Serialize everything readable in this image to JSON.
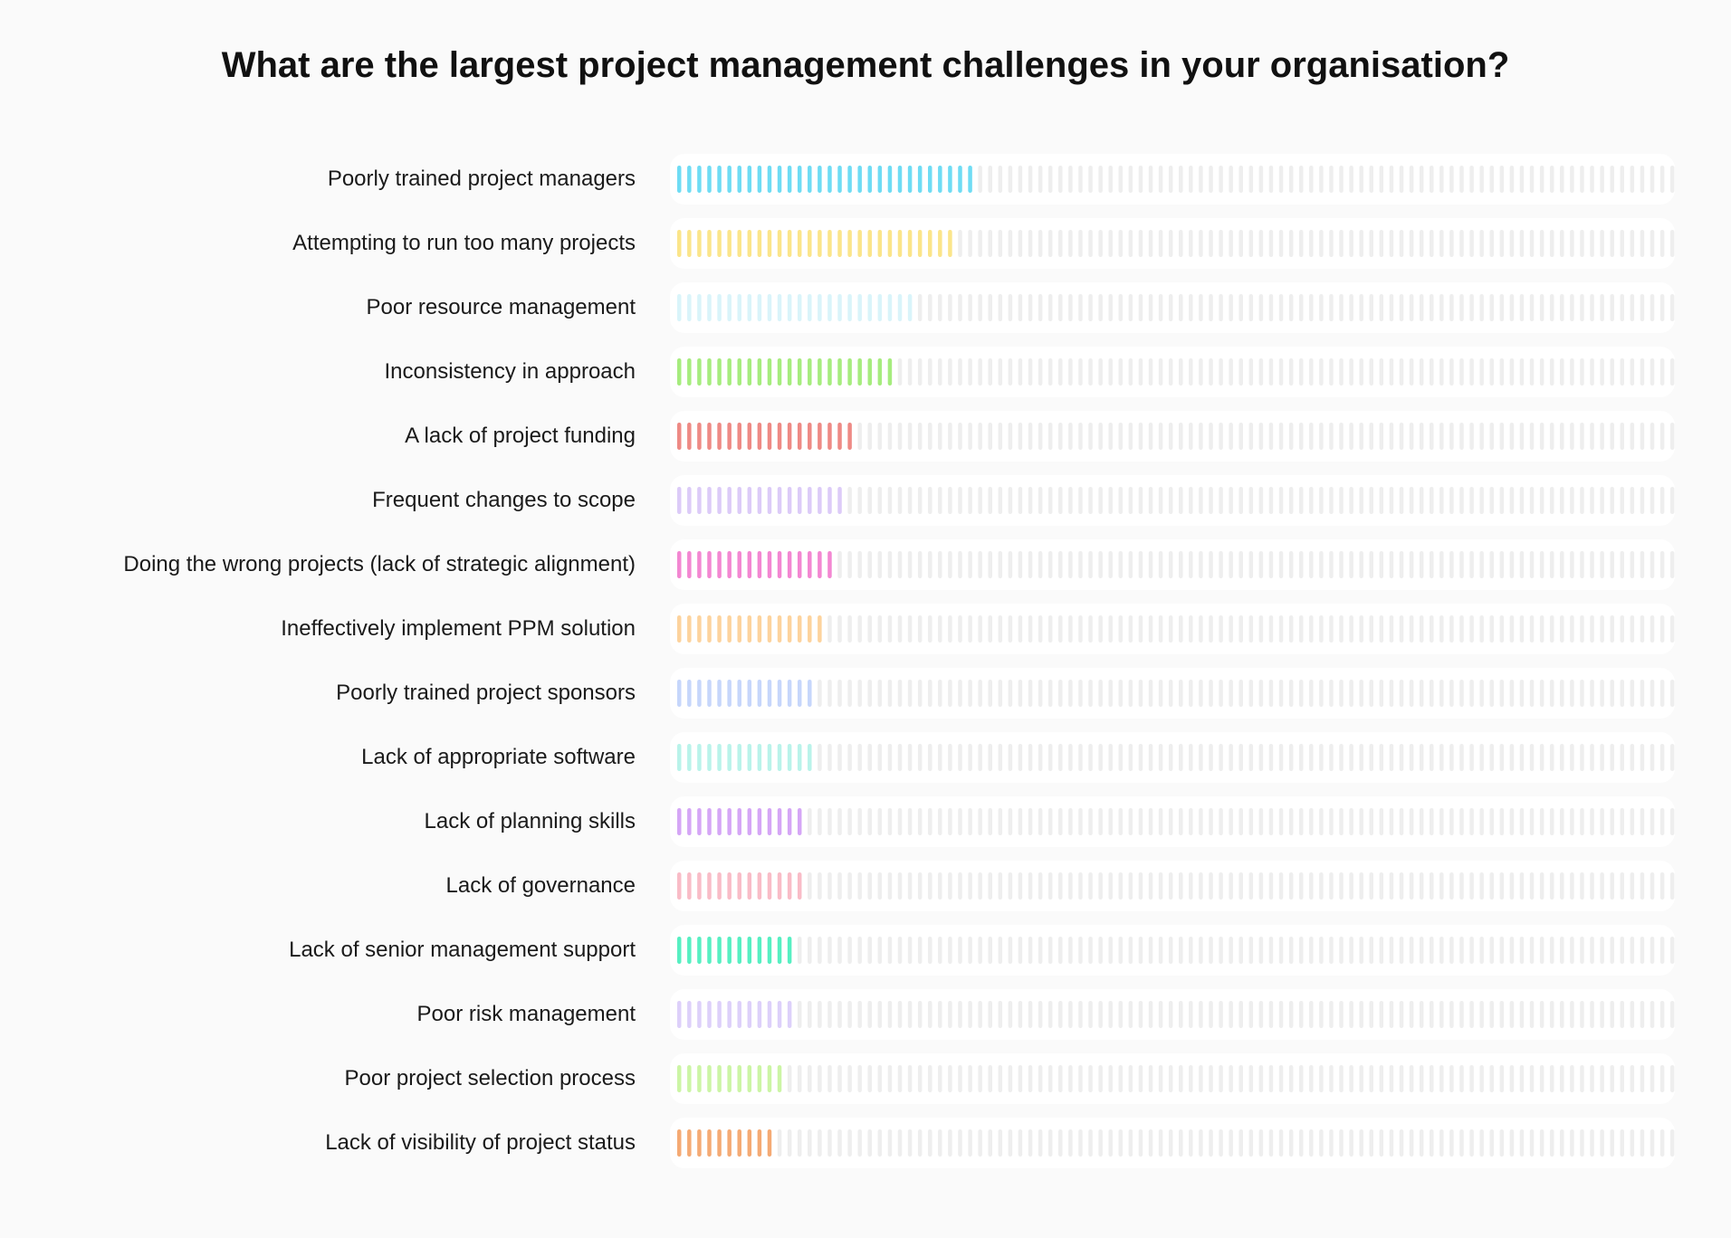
{
  "chart_data": {
    "type": "bar",
    "title": "What are the largest project management challenges in your organisation?",
    "scale_max_ticks": 100,
    "track_color": "#eeeeee",
    "categories": [
      "Poorly trained project managers",
      "Attempting to run too many projects",
      "Poor resource management",
      "Inconsistency in approach",
      "A lack of project funding",
      "Frequent changes to scope",
      "Doing the wrong projects (lack of strategic alignment)",
      "Ineffectively implement PPM solution",
      "Poorly trained project sponsors",
      "Lack of appropriate software",
      "Lack of planning skills",
      "Lack of governance",
      "Lack of senior management support",
      "Poor risk management",
      "Poor project selection process",
      "Lack of visibility of project status"
    ],
    "values": [
      30,
      28,
      24,
      22,
      18,
      17,
      16,
      15,
      14,
      14,
      13,
      13,
      12,
      12,
      11,
      10
    ],
    "colors": [
      "#6fdcf4",
      "#fbe58a",
      "#d9f4fa",
      "#a6ec7e",
      "#ee8a85",
      "#dccbf8",
      "#f387d2",
      "#fdd39d",
      "#c6d6fb",
      "#b9f3ea",
      "#d5a6f6",
      "#f9bcc7",
      "#57efc2",
      "#ddd0fa",
      "#ccf5a5",
      "#f5aa74"
    ]
  }
}
